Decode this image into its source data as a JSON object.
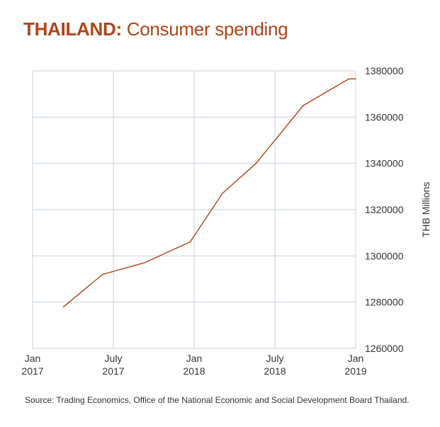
{
  "header": {
    "title_country": "THAILAND:",
    "title_subject": "Consumer spending"
  },
  "footer": {
    "source": "Source: Trading Economics, Office of the National Economic and Social Development Board Thailand."
  },
  "colors": {
    "accent": "#b0431a",
    "line": "#b0431a",
    "grid": "#c7d3de",
    "text": "#333333"
  },
  "chart_data": {
    "type": "line",
    "title": "THAILAND: Consumer spending",
    "xlabel": "",
    "ylabel": "THB Millions",
    "grid": true,
    "x_ticks": [
      {
        "x": 0,
        "label": [
          "Jan",
          "2017"
        ]
      },
      {
        "x": 6,
        "label": [
          "July",
          "2017"
        ]
      },
      {
        "x": 12,
        "label": [
          "Jan",
          "2018"
        ]
      },
      {
        "x": 18,
        "label": [
          "July",
          "2018"
        ]
      },
      {
        "x": 24,
        "label": [
          "Jan",
          "2019"
        ]
      }
    ],
    "xlim": [
      0,
      24
    ],
    "ylim": [
      1260000,
      1380000
    ],
    "y_ticks": [
      1260000,
      1280000,
      1300000,
      1320000,
      1340000,
      1360000,
      1380000
    ],
    "series": [
      {
        "name": "Consumer spending",
        "x": [
          2.3,
          5.2,
          8.3,
          11.7,
          14.1,
          16.6,
          20.1,
          23.5,
          24.0
        ],
        "values": [
          1278000,
          1292000,
          1297000,
          1306000,
          1327000,
          1340000,
          1365000,
          1376500,
          1376500
        ]
      }
    ]
  }
}
